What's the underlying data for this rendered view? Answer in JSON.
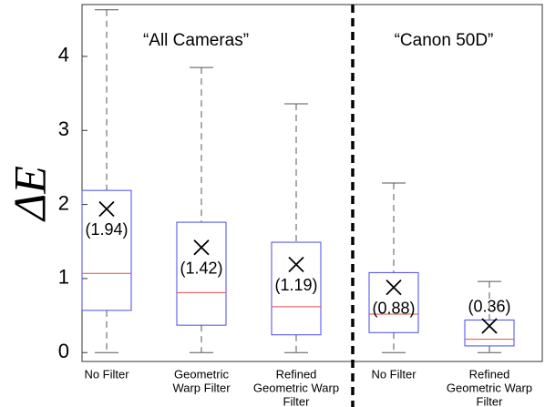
{
  "chart_data": {
    "type": "box",
    "y_label": "ΔE",
    "annotations": [
      "“All Cameras”",
      "“Canon 50D”"
    ],
    "categories": [
      [
        "No Filter"
      ],
      [
        "Geometric",
        "Warp Filter"
      ],
      [
        "Refined",
        "Geometric Warp",
        "Filter"
      ],
      [
        "No Filter"
      ],
      [
        "Refined",
        "Geometric Warp",
        "Filter"
      ]
    ],
    "whisker_low": [
      0,
      0,
      0,
      0,
      0
    ],
    "q1": [
      0.57,
      0.37,
      0.24,
      0.27,
      0.09
    ],
    "median": [
      1.07,
      0.81,
      0.62,
      0.52,
      0.18
    ],
    "q3": [
      2.19,
      1.76,
      1.49,
      1.08,
      0.44
    ],
    "whisker_high": [
      4.63,
      3.85,
      3.36,
      2.29,
      0.96
    ],
    "mean": [
      1.94,
      1.42,
      1.19,
      0.88,
      0.36
    ],
    "mean_labels": [
      "(1.94)",
      "(1.42)",
      "(1.19)",
      "(0.88)",
      "(0.36)"
    ],
    "box_color": "#4a4ae8",
    "median_color": "#e8484a",
    "whisker_color": "#555555",
    "ylim": [
      -0.12,
      4.7
    ],
    "yticks": [
      0,
      1,
      2,
      3,
      4
    ]
  }
}
